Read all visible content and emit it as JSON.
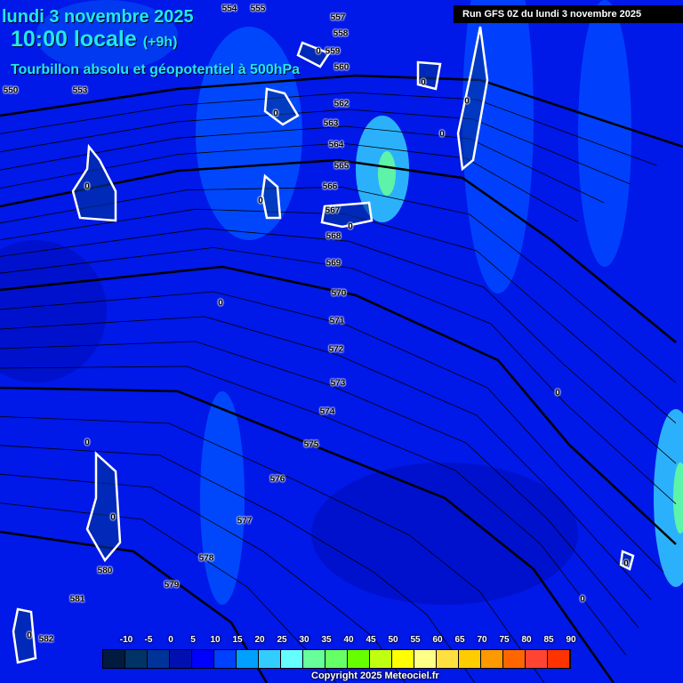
{
  "header": {
    "date": "lundi 3 novembre 2025",
    "time": "10:00 locale",
    "offset": "(+9h)",
    "title": "Tourbillon absolu et géopotentiel à 500hPa",
    "run": "Run GFS 0Z du lundi 3 novembre 2025"
  },
  "contour_labels": [
    "550",
    "553",
    "554",
    "555",
    "557",
    "558",
    "559",
    "560",
    "562",
    "563",
    "564",
    "565",
    "566",
    "567",
    "568",
    "569",
    "570",
    "571",
    "572",
    "573",
    "574",
    "575",
    "576",
    "577",
    "578",
    "579",
    "580",
    "581",
    "582"
  ],
  "zero_label": "0",
  "legend": {
    "ticks": [
      "-10",
      "-5",
      "0",
      "5",
      "10",
      "15",
      "20",
      "25",
      "30",
      "35",
      "40",
      "45",
      "50",
      "55",
      "60",
      "65",
      "70",
      "75",
      "80",
      "85",
      "90"
    ],
    "colors": [
      "#001a40",
      "#003366",
      "#003399",
      "#0010b0",
      "#0000ff",
      "#0040ff",
      "#00a0ff",
      "#33ccff",
      "#66ffff",
      "#66ff99",
      "#66ff66",
      "#66ff00",
      "#c0ff10",
      "#ffff00",
      "#ffff88",
      "#ffe040",
      "#ffcc00",
      "#ff9900",
      "#ff6600",
      "#ff4433",
      "#ff3300"
    ]
  },
  "copyright": "Copyright 2025 Meteociel.fr"
}
